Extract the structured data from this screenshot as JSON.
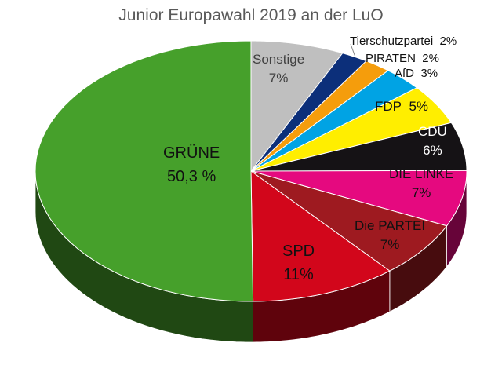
{
  "chart_data": {
    "type": "pie",
    "style": "3d",
    "title": "Junior Europawahl 2019 an der LuO",
    "slices": [
      {
        "label": "Sonstige",
        "value": 7,
        "display": "7%",
        "color": "#bfbfbf"
      },
      {
        "label": "Tierschutzpartei",
        "value": 2,
        "display": "2%",
        "color": "#0c2f7a"
      },
      {
        "label": "PIRATEN",
        "value": 2,
        "display": "2%",
        "color": "#f59d0c"
      },
      {
        "label": "AfD",
        "value": 3,
        "display": "3%",
        "color": "#00a3e4"
      },
      {
        "label": "FDP",
        "value": 5,
        "display": "5%",
        "color": "#ffee00"
      },
      {
        "label": "CDU",
        "value": 6,
        "display": "6%",
        "color": "#151215"
      },
      {
        "label": "DIE LINKE",
        "value": 7,
        "display": "7%",
        "color": "#e5097f"
      },
      {
        "label": "Die PARTEI",
        "value": 7,
        "display": "7%",
        "color": "#9e1a20"
      },
      {
        "label": "SPD",
        "value": 11,
        "display": "11%",
        "color": "#d2061b"
      },
      {
        "label": "GRÜNE",
        "value": 50.3,
        "display": "50,3 %",
        "color": "#46a02b"
      }
    ]
  }
}
